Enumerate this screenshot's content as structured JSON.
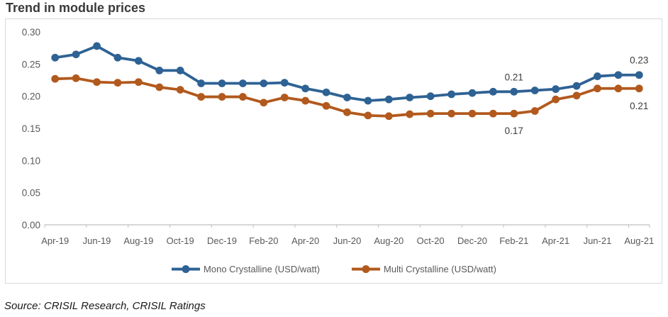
{
  "header": {
    "title": "Trend in module prices"
  },
  "footer": {
    "source": "Source: CRISIL Research, CRISIL Ratings"
  },
  "chart_data": {
    "type": "line",
    "title": "Trend in module prices",
    "xlabel": "",
    "ylabel": "",
    "grid": false,
    "legend_position": "bottom",
    "ylim": [
      0,
      0.3
    ],
    "yticks": [
      "0.00",
      "0.05",
      "0.10",
      "0.15",
      "0.20",
      "0.25",
      "0.30"
    ],
    "x": [
      "Apr-19",
      "May-19",
      "Jun-19",
      "Jul-19",
      "Aug-19",
      "Sep-19",
      "Oct-19",
      "Nov-19",
      "Dec-19",
      "Jan-20",
      "Feb-20",
      "Mar-20",
      "Apr-20",
      "May-20",
      "Jun-20",
      "Jul-20",
      "Aug-20",
      "Sep-20",
      "Oct-20",
      "Nov-20",
      "Dec-20",
      "Jan-21",
      "Feb-21",
      "Mar-21",
      "Apr-21",
      "May-21",
      "Jun-21",
      "Jul-21",
      "Aug-21"
    ],
    "xtick_labels": [
      "Apr-19",
      "Jun-19",
      "Aug-19",
      "Oct-19",
      "Dec-19",
      "Feb-20",
      "Apr-20",
      "Jun-20",
      "Aug-20",
      "Oct-20",
      "Dec-20",
      "Feb-21",
      "Apr-21",
      "Jun-21",
      "Aug-21"
    ],
    "series": [
      {
        "name": "Mono Crystalline (USD/watt)",
        "color": "#2E6294",
        "values": [
          0.26,
          0.265,
          0.278,
          0.26,
          0.255,
          0.24,
          0.24,
          0.22,
          0.22,
          0.22,
          0.22,
          0.221,
          0.212,
          0.206,
          0.198,
          0.193,
          0.195,
          0.198,
          0.2,
          0.203,
          0.205,
          0.207,
          0.207,
          0.209,
          0.211,
          0.216,
          0.231,
          0.233,
          0.233
        ]
      },
      {
        "name": "Multi Crystalline (USD/watt)",
        "color": "#B2591D",
        "values": [
          0.227,
          0.228,
          0.222,
          0.221,
          0.222,
          0.214,
          0.21,
          0.199,
          0.199,
          0.199,
          0.19,
          0.198,
          0.193,
          0.185,
          0.175,
          0.17,
          0.169,
          0.172,
          0.173,
          0.173,
          0.173,
          0.173,
          0.173,
          0.177,
          0.195,
          0.201,
          0.212,
          0.212,
          0.212
        ]
      }
    ],
    "annotations": [
      {
        "series_index": 0,
        "point_index": 22,
        "x": "Feb-21",
        "label": "0.21",
        "placement": "above"
      },
      {
        "series_index": 1,
        "point_index": 22,
        "x": "Feb-21",
        "label": "0.17",
        "placement": "below"
      },
      {
        "series_index": 0,
        "point_index": 28,
        "x": "Aug-21",
        "label": "0.23",
        "placement": "above"
      },
      {
        "series_index": 1,
        "point_index": 28,
        "x": "Aug-21",
        "label": "0.21",
        "placement": "below"
      }
    ],
    "colors": {
      "axis_line": "#BFBFBF",
      "axis_labels": "#595959",
      "data_labels": "#3B3B3B",
      "frame_border": "#D9D9D9",
      "title_text": "#3A3A3A"
    }
  }
}
